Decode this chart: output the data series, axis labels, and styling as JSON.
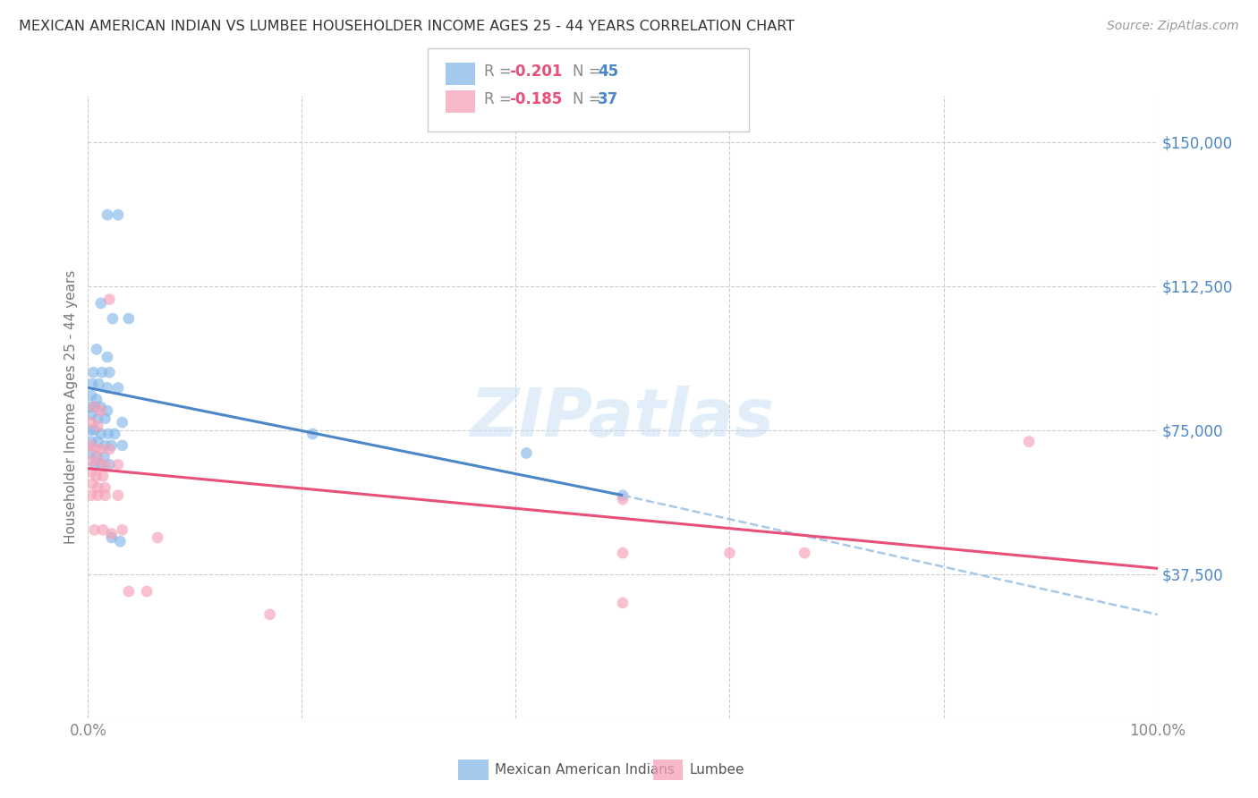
{
  "title": "MEXICAN AMERICAN INDIAN VS LUMBEE HOUSEHOLDER INCOME AGES 25 - 44 YEARS CORRELATION CHART",
  "source": "Source: ZipAtlas.com",
  "ylabel": "Householder Income Ages 25 - 44 years",
  "legend_label_blue": "Mexican American Indians",
  "legend_label_pink": "Lumbee",
  "legend_R_blue": "R = -0.201",
  "legend_N_blue": "N = 45",
  "legend_R_pink": "R = -0.185",
  "legend_N_pink": "N = 37",
  "ytick_labels": [
    "$37,500",
    "$75,000",
    "$112,500",
    "$150,000"
  ],
  "ytick_values": [
    37500,
    75000,
    112500,
    150000
  ],
  "xlim": [
    0,
    100
  ],
  "ylim": [
    0,
    162000
  ],
  "background_color": "#ffffff",
  "grid_color": "#cccccc",
  "title_color": "#333333",
  "source_color": "#999999",
  "blue_color": "#85b8e8",
  "pink_color": "#f5a0b8",
  "blue_line_color": "#4a86c8",
  "pink_line_color": "#e8507a",
  "dashed_line_color": "#a8c8e8",
  "blue_points": [
    [
      1.8,
      131000
    ],
    [
      2.8,
      131000
    ],
    [
      1.2,
      108000
    ],
    [
      2.3,
      104000
    ],
    [
      3.8,
      104000
    ],
    [
      0.8,
      96000
    ],
    [
      1.8,
      94000
    ],
    [
      0.5,
      90000
    ],
    [
      1.3,
      90000
    ],
    [
      2.0,
      90000
    ],
    [
      0.4,
      87000
    ],
    [
      1.0,
      87000
    ],
    [
      1.8,
      86000
    ],
    [
      2.8,
      86000
    ],
    [
      0.3,
      84000
    ],
    [
      0.8,
      83000
    ],
    [
      0.2,
      81000
    ],
    [
      0.6,
      81000
    ],
    [
      1.2,
      81000
    ],
    [
      1.8,
      80000
    ],
    [
      0.3,
      79000
    ],
    [
      0.9,
      78000
    ],
    [
      1.6,
      78000
    ],
    [
      3.2,
      77000
    ],
    [
      0.2,
      75000
    ],
    [
      0.6,
      75000
    ],
    [
      1.2,
      74000
    ],
    [
      1.9,
      74000
    ],
    [
      2.5,
      74000
    ],
    [
      0.3,
      72000
    ],
    [
      0.9,
      72000
    ],
    [
      1.6,
      71000
    ],
    [
      2.2,
      71000
    ],
    [
      0.2,
      69000
    ],
    [
      0.8,
      68000
    ],
    [
      1.5,
      68000
    ],
    [
      0.6,
      66000
    ],
    [
      1.2,
      66000
    ],
    [
      2.0,
      66000
    ],
    [
      3.2,
      71000
    ],
    [
      21,
      74000
    ],
    [
      41,
      69000
    ],
    [
      50,
      58000
    ],
    [
      2.2,
      47000
    ],
    [
      3.0,
      46000
    ]
  ],
  "pink_points": [
    [
      2.0,
      109000
    ],
    [
      0.6,
      81000
    ],
    [
      1.2,
      80000
    ],
    [
      0.3,
      77000
    ],
    [
      0.9,
      76000
    ],
    [
      0.2,
      71000
    ],
    [
      0.7,
      70000
    ],
    [
      1.2,
      70000
    ],
    [
      2.0,
      70000
    ],
    [
      0.3,
      67000
    ],
    [
      0.9,
      67000
    ],
    [
      1.6,
      66000
    ],
    [
      2.8,
      66000
    ],
    [
      0.3,
      64000
    ],
    [
      0.8,
      63000
    ],
    [
      1.4,
      63000
    ],
    [
      0.4,
      61000
    ],
    [
      0.9,
      60000
    ],
    [
      1.6,
      60000
    ],
    [
      0.3,
      58000
    ],
    [
      0.9,
      58000
    ],
    [
      1.6,
      58000
    ],
    [
      2.8,
      58000
    ],
    [
      0.6,
      49000
    ],
    [
      1.4,
      49000
    ],
    [
      2.2,
      48000
    ],
    [
      3.2,
      49000
    ],
    [
      6.5,
      47000
    ],
    [
      50,
      57000
    ],
    [
      50,
      43000
    ],
    [
      60,
      43000
    ],
    [
      67,
      43000
    ],
    [
      88,
      72000
    ],
    [
      50,
      30000
    ],
    [
      17,
      27000
    ],
    [
      3.8,
      33000
    ],
    [
      5.5,
      33000
    ]
  ],
  "blue_line_x": [
    0,
    50
  ],
  "blue_line_y": [
    86000,
    58000
  ],
  "pink_line_x": [
    0,
    100
  ],
  "pink_line_y": [
    65000,
    39000
  ],
  "dashed_line_x": [
    50,
    100
  ],
  "dashed_line_y": [
    58000,
    27000
  ]
}
